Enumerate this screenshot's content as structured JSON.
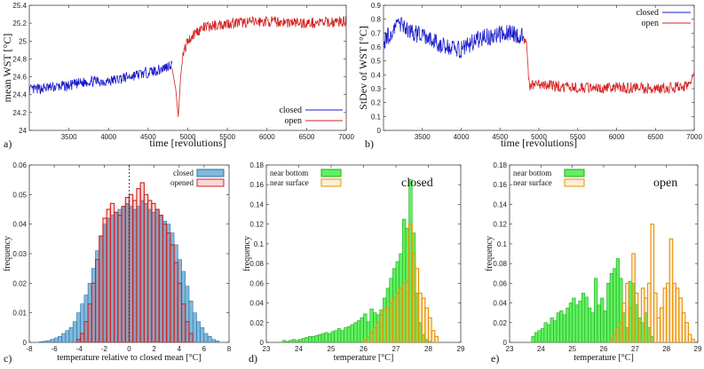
{
  "chart_data": [
    {
      "id": "a",
      "type": "line",
      "panel_label": "a)",
      "xlabel": "time [revolutions]",
      "ylabel": "mean WST [°C]",
      "xlim": [
        3000,
        7000
      ],
      "ylim": [
        24.0,
        25.4
      ],
      "xticks": [
        3500,
        4000,
        4500,
        5000,
        5500,
        6000,
        6500,
        7000
      ],
      "yticks": [
        24,
        24.2,
        24.4,
        24.6,
        24.8,
        25,
        25.2,
        25.4
      ],
      "ytick_labels": [
        "24",
        "24.2",
        "24.4",
        "24.6",
        "24.8",
        "25",
        "25.2",
        "25.4"
      ],
      "legend": "bottom-right",
      "series": [
        {
          "name": "closed",
          "color": "#1a1acc",
          "x": [
            3000,
            3250,
            3500,
            3750,
            4000,
            4250,
            4500,
            4650,
            4750,
            4800
          ],
          "y": [
            24.45,
            24.48,
            24.5,
            24.55,
            24.55,
            24.6,
            24.65,
            24.68,
            24.72,
            24.75
          ]
        },
        {
          "name": "open",
          "color": "#d42020",
          "x": [
            4800,
            4850,
            4880,
            4910,
            4940,
            5000,
            5100,
            5200,
            5500,
            6000,
            6500,
            7000
          ],
          "y": [
            24.7,
            24.45,
            24.15,
            24.6,
            24.85,
            25.0,
            25.1,
            25.15,
            25.2,
            25.22,
            25.2,
            25.22
          ]
        }
      ]
    },
    {
      "id": "b",
      "type": "line",
      "panel_label": "b)",
      "xlabel": "time [revolutions]",
      "ylabel": "StDev of WST [°C]",
      "xlim": [
        3000,
        7000
      ],
      "ylim": [
        0.0,
        0.9
      ],
      "xticks": [
        3500,
        4000,
        4500,
        5000,
        5500,
        6000,
        6500,
        7000
      ],
      "yticks": [
        0,
        0.1,
        0.2,
        0.3,
        0.4,
        0.5,
        0.6,
        0.7,
        0.8,
        0.9
      ],
      "ytick_labels": [
        "0",
        "0.1",
        "0.2",
        "0.3",
        "0.4",
        "0.5",
        "0.6",
        "0.7",
        "0.8",
        "0.9"
      ],
      "legend": "top-right",
      "series": [
        {
          "name": "closed",
          "color": "#1a1acc",
          "x": [
            3000,
            3200,
            3400,
            3600,
            3800,
            4000,
            4200,
            4400,
            4600,
            4800
          ],
          "y": [
            0.64,
            0.77,
            0.7,
            0.65,
            0.6,
            0.58,
            0.65,
            0.68,
            0.7,
            0.68
          ]
        },
        {
          "name": "open",
          "color": "#d42020",
          "x": [
            4800,
            4840,
            4860,
            4880,
            4950,
            5200,
            5500,
            6000,
            6500,
            6950,
            7000
          ],
          "y": [
            0.66,
            0.64,
            0.45,
            0.32,
            0.33,
            0.32,
            0.3,
            0.31,
            0.3,
            0.32,
            0.4
          ]
        }
      ]
    },
    {
      "id": "c",
      "type": "bar",
      "panel_label": "c)",
      "xlabel": "temperature relative to closed mean [°C]",
      "ylabel": "frequency",
      "xlim": [
        -8,
        8
      ],
      "ylim": [
        0,
        0.06
      ],
      "xticks": [
        -8,
        -6,
        -4,
        -2,
        0,
        2,
        4,
        6,
        8
      ],
      "yticks": [
        0,
        0.01,
        0.02,
        0.03,
        0.04,
        0.05,
        0.06
      ],
      "ytick_labels": [
        "0",
        "0.01",
        "0.02",
        "0.03",
        "0.04",
        "0.05",
        "0.06"
      ],
      "legend": "top-right",
      "bin_width": 0.3,
      "annotation_vline_x": 0,
      "series": [
        {
          "name": "closed",
          "color": "#6aaed6",
          "edge": "#2b6fa8",
          "style": "filled",
          "bins_start": -7.2,
          "values": [
            0.0002,
            0.0004,
            0.0006,
            0.001,
            0.0015,
            0.002,
            0.003,
            0.004,
            0.005,
            0.007,
            0.01,
            0.013,
            0.016,
            0.02,
            0.025,
            0.031,
            0.036,
            0.04,
            0.042,
            0.043,
            0.044,
            0.045,
            0.046,
            0.047,
            0.046,
            0.045,
            0.046,
            0.048,
            0.047,
            0.045,
            0.044,
            0.045,
            0.043,
            0.041,
            0.04,
            0.037,
            0.033,
            0.028,
            0.024,
            0.019,
            0.014,
            0.01,
            0.007,
            0.005,
            0.003,
            0.002,
            0.001,
            0.0005
          ]
        },
        {
          "name": "opened",
          "color": "#d42020",
          "edge": "#d42020",
          "style": "outline",
          "bins_start": -4.2,
          "values": [
            0.001,
            0.003,
            0.007,
            0.013,
            0.02,
            0.028,
            0.036,
            0.042,
            0.045,
            0.047,
            0.044,
            0.043,
            0.046,
            0.049,
            0.05,
            0.048,
            0.052,
            0.054,
            0.05,
            0.048,
            0.047,
            0.045,
            0.043,
            0.04,
            0.037,
            0.033,
            0.027,
            0.02,
            0.013,
            0.007,
            0.003
          ]
        }
      ]
    },
    {
      "id": "d",
      "type": "bar",
      "panel_label": "d)",
      "annotation": "closed",
      "xlabel": "temperature [°C]",
      "ylabel": "frequency",
      "xlim": [
        23,
        29
      ],
      "ylim": [
        0,
        0.18
      ],
      "xticks": [
        23,
        24,
        25,
        26,
        27,
        28,
        29
      ],
      "yticks": [
        0,
        0.02,
        0.04,
        0.06,
        0.08,
        0.1,
        0.12,
        0.14,
        0.16,
        0.18
      ],
      "ytick_labels": [
        "0",
        "0.02",
        "0.04",
        "0.06",
        "0.08",
        "0.1",
        "0.12",
        "0.14",
        "0.16",
        "0.18"
      ],
      "legend": "top-left",
      "bin_width": 0.1,
      "series": [
        {
          "name": "near bottom",
          "color": "#44ee44",
          "edge": "#22aa22",
          "style": "filled",
          "bins_start": 23.5,
          "values": [
            0.002,
            0.001,
            0.002,
            0.003,
            0.002,
            0.003,
            0.004,
            0.005,
            0.006,
            0.006,
            0.007,
            0.008,
            0.009,
            0.01,
            0.009,
            0.011,
            0.012,
            0.014,
            0.012,
            0.015,
            0.016,
            0.018,
            0.02,
            0.022,
            0.025,
            0.029,
            0.021,
            0.034,
            0.03,
            0.028,
            0.033,
            0.045,
            0.055,
            0.065,
            0.075,
            0.082,
            0.09,
            0.125,
            0.116,
            0.165,
            0.111,
            0.05,
            0.02,
            0.008,
            0.003,
            0.001
          ]
        },
        {
          "name": "near surface",
          "color": "#f0a020",
          "edge": "#e89000",
          "style": "outline",
          "bins_start": 26.0,
          "values": [
            0.002,
            0.005,
            0.01,
            0.015,
            0.02,
            0.028,
            0.034,
            0.035,
            0.04,
            0.045,
            0.05,
            0.055,
            0.06,
            0.062,
            0.12,
            0.09,
            0.075,
            0.05,
            0.045,
            0.035,
            0.025,
            0.012,
            0.006
          ]
        }
      ]
    },
    {
      "id": "e",
      "type": "bar",
      "panel_label": "e)",
      "annotation": "open",
      "xlabel": "temperature [°C]",
      "ylabel": "frequency",
      "xlim": [
        23,
        29
      ],
      "ylim": [
        0,
        0.18
      ],
      "xticks": [
        23,
        24,
        25,
        26,
        27,
        28,
        29
      ],
      "yticks": [
        0,
        0.02,
        0.04,
        0.06,
        0.08,
        0.1,
        0.12,
        0.14,
        0.16,
        0.18
      ],
      "ytick_labels": [
        "0",
        "0.02",
        "0.04",
        "0.06",
        "0.08",
        "0.1",
        "0.12",
        "0.14",
        "0.16",
        "0.18"
      ],
      "legend": "top-left",
      "bin_width": 0.1,
      "series": [
        {
          "name": "near bottom",
          "color": "#44ee44",
          "edge": "#22aa22",
          "style": "filled",
          "bins_start": 23.7,
          "values": [
            0.006,
            0.01,
            0.012,
            0.014,
            0.02,
            0.018,
            0.025,
            0.022,
            0.03,
            0.032,
            0.028,
            0.035,
            0.04,
            0.045,
            0.038,
            0.042,
            0.05,
            0.046,
            0.035,
            0.03,
            0.065,
            0.038,
            0.045,
            0.032,
            0.06,
            0.07,
            0.075,
            0.085,
            0.065,
            0.03,
            0.015,
            0.062,
            0.06,
            0.038,
            0.025,
            0.02,
            0.03,
            0.015,
            0.006
          ]
        },
        {
          "name": "near surface",
          "color": "#f0a020",
          "edge": "#e89000",
          "style": "outline",
          "bins_start": 26.2,
          "values": [
            0.003,
            0.008,
            0.015,
            0.02,
            0.04,
            0.06,
            0.035,
            0.09,
            0.05,
            0.02,
            0.055,
            0.045,
            0.06,
            0.12,
            0.05,
            0.025,
            0.035,
            0.055,
            0.06,
            0.105,
            0.06,
            0.055,
            0.045,
            0.03,
            0.02,
            0.008,
            0.003
          ]
        }
      ]
    }
  ]
}
